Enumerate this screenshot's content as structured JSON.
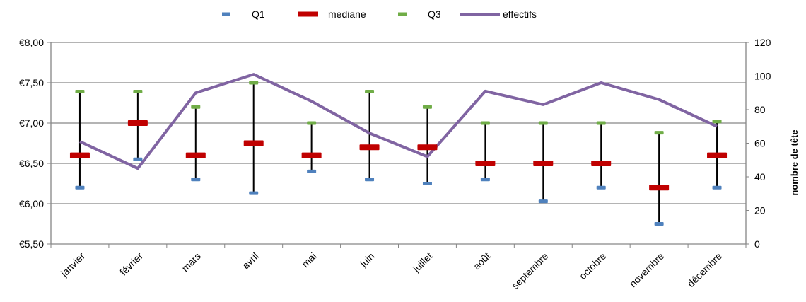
{
  "chart_data": {
    "type": "line",
    "title": "",
    "xlabel": "",
    "ylabel": "",
    "y2label": "nombre de tête",
    "categories": [
      "janvier",
      "février",
      "mars",
      "avril",
      "mai",
      "juin",
      "juillet",
      "août",
      "septembre",
      "octobre",
      "novembre",
      "décembre"
    ],
    "ylim": [
      5.5,
      8.0
    ],
    "ytick_labels": [
      "€5,50",
      "€6,00",
      "€6,50",
      "€7,00",
      "€7,50",
      "€8,00"
    ],
    "y2lim": [
      0,
      120
    ],
    "y2tick_labels": [
      "0",
      "20",
      "40",
      "60",
      "80",
      "100",
      "120"
    ],
    "grid": true,
    "legend_position": "top",
    "series": [
      {
        "name": "Q1",
        "axis": "left",
        "marker": "dash",
        "color": "#4F81BD",
        "values": [
          6.2,
          6.55,
          6.3,
          6.13,
          6.4,
          6.3,
          6.25,
          6.3,
          6.03,
          6.2,
          5.75,
          6.2
        ]
      },
      {
        "name": "mediane",
        "axis": "left",
        "marker": "dash",
        "color": "#C00000",
        "values": [
          6.6,
          7.0,
          6.6,
          6.75,
          6.6,
          6.7,
          6.7,
          6.5,
          6.5,
          6.5,
          6.2,
          6.6
        ]
      },
      {
        "name": "Q3",
        "axis": "left",
        "marker": "dash",
        "color": "#70AD47",
        "values": [
          7.39,
          7.39,
          7.2,
          7.5,
          7.0,
          7.39,
          7.2,
          7.0,
          7.0,
          7.0,
          6.88,
          7.02
        ]
      },
      {
        "name": "effectifs",
        "axis": "right",
        "marker": "line",
        "color": "#8064A2",
        "values": [
          61,
          45,
          90,
          101,
          85,
          66,
          52,
          91,
          83,
          96,
          86,
          70
        ]
      }
    ]
  }
}
